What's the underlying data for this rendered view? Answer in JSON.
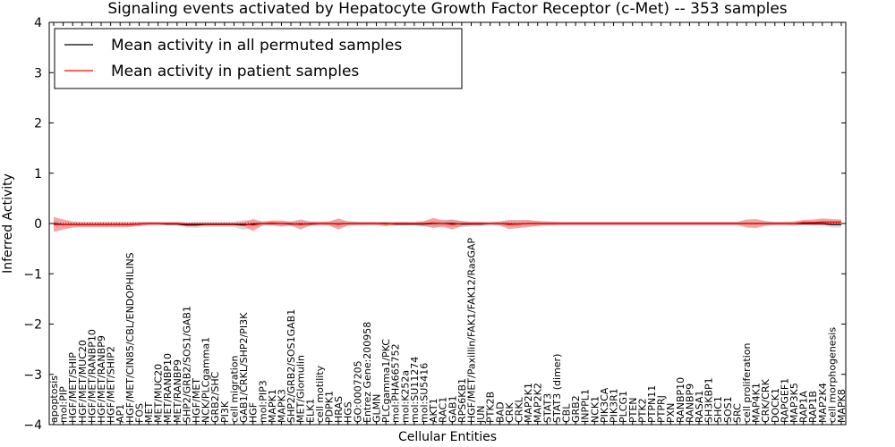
{
  "chart_data": {
    "type": "line",
    "title": "Signaling events activated by Hepatocyte Growth Factor Receptor (c-Met) -- 353 samples",
    "xlabel": "Cellular Entities",
    "ylabel": "Inferred Activity",
    "ylim": [
      -4,
      4
    ],
    "yticks": [
      4,
      3,
      2,
      1,
      0,
      -1,
      -2,
      -3,
      -4
    ],
    "ytick_labels": [
      "4",
      "3",
      "2",
      "1",
      "0",
      "−1",
      "−2",
      "−3",
      "−4"
    ],
    "legend_position": "top-left",
    "categories": [
      "apoptosis",
      "mol:PIP",
      "HGF/MET/SHIP",
      "HGF/MET/MUC20",
      "HGF/MET/RANBP10",
      "HGF/MET/RANBP9",
      "HGF/MET/SHIP2",
      "AP1",
      "HGF/MET/CIN85/CBL/ENDOPHILINS",
      "FOS",
      "MET",
      "MET/MUC20",
      "MET/RANBP10",
      "MET/RANBP9",
      "SHP2/GRB2/SOS1/GAB1",
      "HGF/MET",
      "NCK/PLCgamma1",
      "GRB2/SHC",
      "PI3K",
      "cell migration",
      "GAB1/CRKL/SHP2/PI3K",
      "HGF",
      "mol:PIP3",
      "MAPK1",
      "MAPK3",
      "SHP2/GRB2/SOS1GAB1",
      "MET/Glomulin",
      "ELK1",
      "cell motility",
      "PDPK1",
      "HRAS",
      "HGS",
      "GO:0007205",
      "Entrez Gene:200958",
      "GLMN",
      "PLCgamma1/PKC",
      "mol:PHA665752",
      "mol:K252a",
      "mol:SU11274",
      "mol:SU5416",
      "AKT1",
      "RAC1",
      "GAB1",
      "RPS6KB1",
      "HGF/MET/Paxillin/FAK1/FAK12/RasGAP",
      "JUN",
      "PTK2B",
      "BAD",
      "CRK",
      "CRKL",
      "MAP2K1",
      "MAP2K2",
      "STAT3",
      "STAT3 (dimer)",
      "CBL",
      "GRB2",
      "INPPL1",
      "NCK1",
      "PIK3CA",
      "PIK3R1",
      "PLCG1",
      "PTEN",
      "PTK2",
      "PTPN11",
      "PTPRJ",
      "PXN",
      "RANBP10",
      "RANBP9",
      "RASA1",
      "SH3KBP1",
      "SHC1",
      "SOS1",
      "SRC",
      "cell proliferation",
      "MAP4K1",
      "CRK/CRK",
      "DOCK1",
      "RAPGEF1",
      "MAP3K5",
      "RAP1A",
      "RAP1B",
      "MAP2K4",
      "cell morphogenesis",
      "MAPK8"
    ],
    "series": [
      {
        "name": "Mean activity in all permuted samples",
        "color": "#000000",
        "values": [
          0.0,
          -0.02,
          -0.02,
          -0.02,
          -0.02,
          -0.02,
          -0.02,
          -0.02,
          -0.02,
          -0.01,
          0.0,
          0.0,
          -0.01,
          -0.01,
          -0.03,
          -0.03,
          -0.02,
          -0.02,
          -0.02,
          -0.02,
          -0.03,
          -0.01,
          0.0,
          0.0,
          0.0,
          -0.01,
          -0.01,
          -0.01,
          0.0,
          0.0,
          -0.01,
          0.0,
          0.0,
          0.0,
          0.0,
          0.0,
          -0.01,
          -0.01,
          -0.01,
          -0.01,
          0.0,
          0.0,
          0.0,
          -0.01,
          -0.01,
          -0.01,
          0.0,
          0.0,
          -0.01,
          -0.01,
          0.0,
          0.0,
          0.0,
          0.0,
          0.0,
          0.0,
          0.0,
          0.0,
          0.0,
          0.0,
          0.0,
          0.0,
          0.0,
          0.0,
          0.0,
          0.0,
          0.0,
          0.0,
          0.0,
          0.0,
          0.0,
          0.0,
          0.0,
          0.0,
          0.0,
          0.0,
          0.0,
          0.0,
          0.0,
          0.0,
          0.0,
          0.0,
          -0.02,
          -0.02
        ],
        "band": [
          0.06,
          0.04,
          0.04,
          0.04,
          0.04,
          0.04,
          0.04,
          0.04,
          0.04,
          0.04,
          0.03,
          0.03,
          0.03,
          0.03,
          0.05,
          0.06,
          0.05,
          0.05,
          0.05,
          0.05,
          0.1,
          0.06,
          0.03,
          0.03,
          0.04,
          0.04,
          0.04,
          0.05,
          0.04,
          0.04,
          0.06,
          0.05,
          0.04,
          0.03,
          0.03,
          0.03,
          0.04,
          0.04,
          0.03,
          0.05,
          0.06,
          0.08,
          0.07,
          0.06,
          0.05,
          0.05,
          0.04,
          0.04,
          0.05,
          0.05,
          0.05,
          0.05,
          0.04,
          0.04,
          0.03,
          0.03,
          0.03,
          0.03,
          0.03,
          0.03,
          0.03,
          0.03,
          0.03,
          0.03,
          0.03,
          0.03,
          0.03,
          0.03,
          0.03,
          0.03,
          0.03,
          0.03,
          0.03,
          0.03,
          0.03,
          0.03,
          0.03,
          0.03,
          0.03,
          0.03,
          0.03,
          0.03,
          0.06,
          0.06
        ]
      },
      {
        "name": "Mean activity in patient samples",
        "color": "#ff0000",
        "values": [
          -0.02,
          -0.02,
          -0.02,
          -0.02,
          -0.02,
          -0.02,
          -0.02,
          -0.02,
          -0.02,
          -0.01,
          0.0,
          0.0,
          0.0,
          0.0,
          -0.01,
          -0.01,
          -0.01,
          -0.01,
          -0.01,
          -0.01,
          -0.01,
          -0.03,
          0.0,
          0.01,
          0.0,
          0.0,
          -0.02,
          0.0,
          0.0,
          0.0,
          -0.01,
          0.0,
          0.0,
          0.0,
          0.0,
          -0.01,
          0.0,
          0.0,
          0.0,
          0.0,
          0.01,
          0.0,
          -0.02,
          0.0,
          0.0,
          0.0,
          0.0,
          0.0,
          -0.02,
          -0.01,
          0.0,
          0.0,
          0.0,
          0.0,
          0.0,
          0.0,
          0.0,
          0.0,
          0.0,
          0.0,
          0.0,
          0.0,
          0.0,
          0.0,
          0.0,
          0.0,
          0.0,
          0.0,
          0.0,
          0.0,
          0.0,
          0.0,
          0.0,
          0.0,
          0.0,
          0.0,
          0.0,
          0.0,
          0.0,
          0.02,
          0.02,
          0.03,
          0.03,
          0.03
        ],
        "band": [
          0.15,
          0.1,
          0.06,
          0.05,
          0.05,
          0.05,
          0.05,
          0.05,
          0.05,
          0.04,
          0.03,
          0.03,
          0.03,
          0.03,
          0.03,
          0.03,
          0.03,
          0.03,
          0.03,
          0.03,
          0.04,
          0.12,
          0.04,
          0.05,
          0.06,
          0.04,
          0.1,
          0.04,
          0.03,
          0.04,
          0.11,
          0.04,
          0.03,
          0.03,
          0.03,
          0.04,
          0.03,
          0.03,
          0.03,
          0.05,
          0.1,
          0.06,
          0.1,
          0.05,
          0.03,
          0.03,
          0.02,
          0.04,
          0.09,
          0.08,
          0.07,
          0.05,
          0.04,
          0.03,
          0.03,
          0.03,
          0.03,
          0.03,
          0.03,
          0.03,
          0.03,
          0.03,
          0.03,
          0.03,
          0.03,
          0.03,
          0.03,
          0.03,
          0.03,
          0.03,
          0.03,
          0.03,
          0.03,
          0.08,
          0.09,
          0.05,
          0.03,
          0.03,
          0.04,
          0.05,
          0.06,
          0.07,
          0.06,
          0.05
        ]
      }
    ]
  }
}
